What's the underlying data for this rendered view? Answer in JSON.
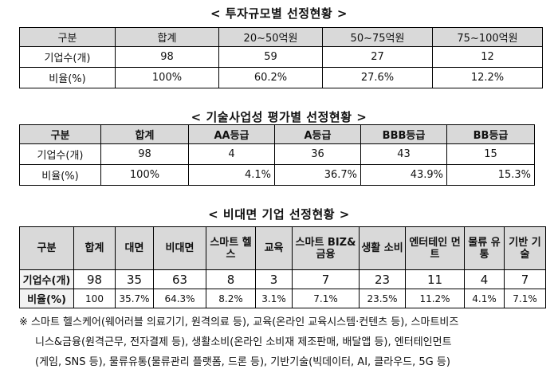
{
  "section1": {
    "title": "< 투자규모별  선정현황 >",
    "headers": [
      "구분",
      "합계",
      "20~50억원",
      "50~75억원",
      "75~100억원"
    ],
    "rows": [
      [
        "기업수(개)",
        "98",
        "59",
        "27",
        "12"
      ],
      [
        "비율(%)",
        "100%",
        "60.2%",
        "27.6%",
        "12.2%"
      ]
    ]
  },
  "section2": {
    "title": "< 기술사업성  평가별  선정현황 >",
    "headers": [
      "구분",
      "합계",
      "AA등급",
      "A등급",
      "BBB등급",
      "BB등급"
    ],
    "rows": [
      [
        "기업수(개)",
        "98",
        "4",
        "36",
        "43",
        "15"
      ],
      [
        "비율(%)",
        "100%",
        "4.1%",
        "36.7%",
        "43.9%",
        "15.3%"
      ]
    ]
  },
  "section3": {
    "title": "< 비대면  기업  선정현황 >",
    "headers": [
      "구분",
      "합계",
      "대면",
      "비대면",
      "스마트 헬스",
      "교육",
      "스마트 BIZ&금융",
      "생활 소비",
      "엔터테인 먼트",
      "물류 유통",
      "기반 기술"
    ],
    "rows": [
      [
        "기업수(개)",
        "98",
        "35",
        "63",
        "8",
        "3",
        "7",
        "23",
        "11",
        "4",
        "7"
      ],
      [
        "비율(%)",
        "100",
        "35.7%",
        "64.3%",
        "8.2%",
        "3.1%",
        "7.1%",
        "23.5%",
        "11.2%",
        "4.1%",
        "7.1%"
      ]
    ]
  },
  "note": {
    "lines": [
      "※  스마트 헬스케어(웨어러블 의료기기, 원격의료 등), 교육(온라인 교육시스템·컨텐츠 등), 스마트비즈",
      "니스&금융(원격근무, 전자결제 등), 생활소비(온라인 소비재 제조판매, 배달앱 등), 엔터테인먼트",
      "(게임, SNS 등), 물류유통(물류관리 플랫폼, 드론 등), 기반기술(빅데이터, AI, 클라우드, 5G 등)"
    ]
  }
}
